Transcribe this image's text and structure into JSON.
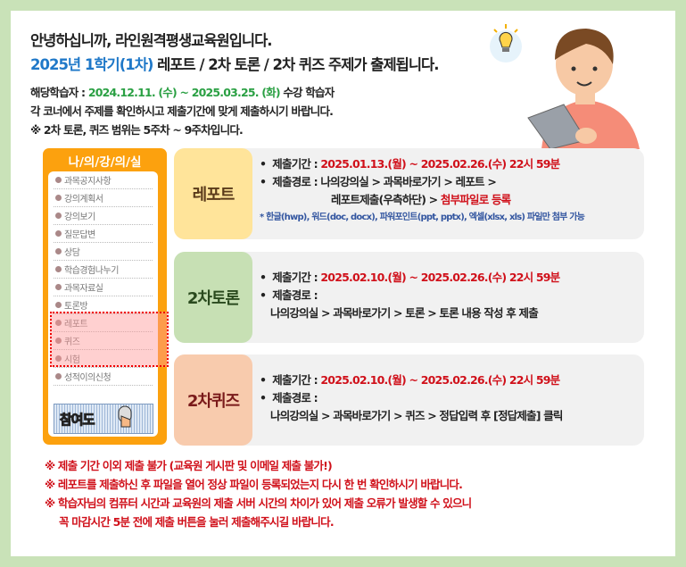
{
  "header": {
    "greeting": "안녕하십니까, 라인원격평생교육원입니다.",
    "subtitle_blue": "2025년 1학기(1차)",
    "subtitle_rest": " 레포트 / 2차 토론 / 2차 퀴즈 주제가 출제됩니다.",
    "target_label": "해당학습자 : ",
    "target_period": "2024.12.11. (수) ~ 2025.03.25. (화)",
    "target_suffix": " 수강 학습자",
    "instruction": "각 코너에서 주제를 확인하시고 제출기간에 맞게 제출하시기 바랍니다.",
    "scope": "※ 2차 토론, 퀴즈 범위는 5주차 ~ 9주차입니다."
  },
  "sidebar": {
    "title": "나/의/강/의/실",
    "items": [
      "과목공지사항",
      "강의계획서",
      "강의보기",
      "질문답변",
      "상담",
      "학습경험나누기",
      "과목자료실",
      "토론방",
      "레포트",
      "퀴즈",
      "시험",
      "성적이의신청"
    ],
    "join_button": "참여도"
  },
  "cards": [
    {
      "label": "레포트",
      "color": "#ffe49a",
      "text_color": "#5a3a1a",
      "period_label": "제출기간 : ",
      "period": "2025.01.13.(월) ~ 2025.02.26.(수) 22시 59분",
      "path_label": "제출경로 : ",
      "path1": "나의강의실 > 과목바로가기 > 레포트 >",
      "path2": "레포트제출(우측하단) > ",
      "path2_red": "첨부파일로 등록",
      "note": "* 한글(hwp), 워드(doc, docx), 파워포인트(ppt, pptx), 엑셀(xlsx, xls) 파일만 첨부 가능"
    },
    {
      "label": "2차토론",
      "color": "#c7e0b4",
      "text_color": "#2a4a1e",
      "period_label": "제출기간 : ",
      "period": "2025.02.10.(월) ~ 2025.02.26.(수) 22시 59분",
      "path_label": "제출경로 :",
      "path1": "나의강의실 > 과목바로가기 > 토론 > 토론 내용 작성 후 제출"
    },
    {
      "label": "2차퀴즈",
      "color": "#f8cbad",
      "text_color": "#7a1a1a",
      "period_label": "제출기간 : ",
      "period": "2025.02.10.(월) ~ 2025.02.26.(수) 22시 59분",
      "path_label": "제출경로 :",
      "path1": "나의강의실 > 과목바로가기 > 퀴즈 > 정답입력 후 [정답제출] 클릭"
    }
  ],
  "footer": [
    "※ 제출 기간 이외 제출 불가 (교육원 게시판 및 이메일 제출 불가!)",
    "※ 레포트를 제출하신 후 파일을 열어 정상 파일이 등록되었는지 다시 한 번 확인하시기 바랍니다.",
    "※  학습자님의 컴퓨터 시간과 교육원의 제출 서버 시간의 차이가 있어 제출 오류가 발생할 수 있으니",
    "꼭 마감시간 5분 전에 제출 버튼을 눌러 제출해주시길 바랍니다."
  ]
}
